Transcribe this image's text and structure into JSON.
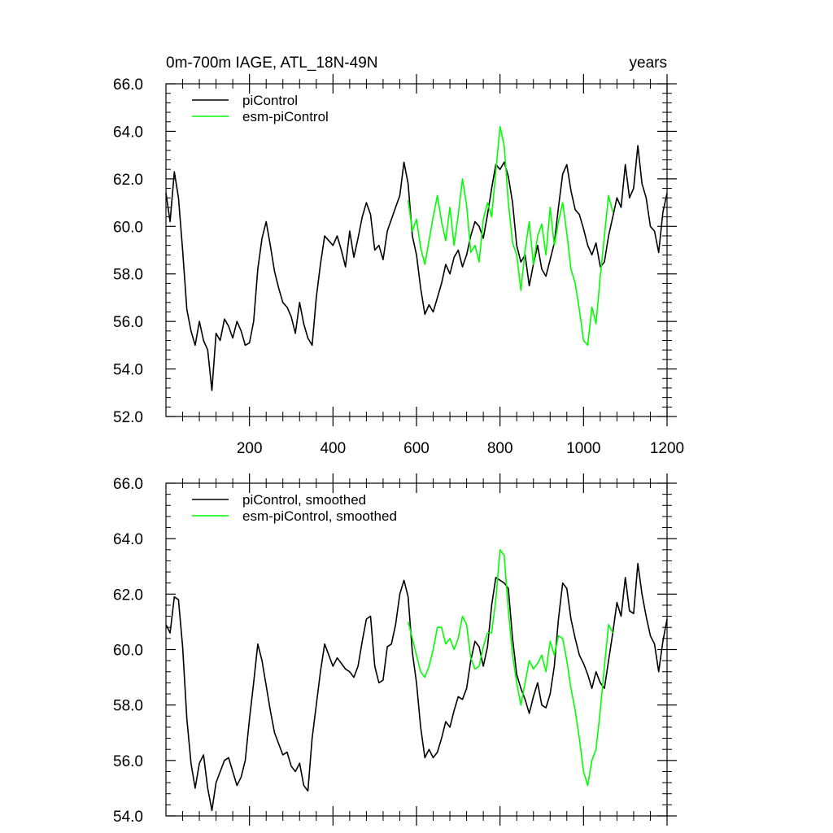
{
  "chart_data": [
    {
      "type": "line",
      "title": "0m-700m IAGE, ATL_18N-49N",
      "title_right": "years",
      "xlim": [
        0,
        1200
      ],
      "ylim": [
        52.0,
        66.0
      ],
      "xticks": [
        200,
        400,
        600,
        800,
        1000,
        1200
      ],
      "xtick_labels": [
        "200",
        "400",
        "600",
        "800",
        "1000",
        "1200"
      ],
      "yticks": [
        52.0,
        54.0,
        56.0,
        58.0,
        60.0,
        62.0,
        64.0,
        66.0
      ],
      "ytick_labels": [
        "52.0",
        "54.0",
        "56.0",
        "58.0",
        "60.0",
        "62.0",
        "64.0",
        "66.0"
      ],
      "legend_position": "top-left",
      "grid": false,
      "series": [
        {
          "name": "piControl",
          "color": "#000000",
          "x": [
            0,
            10,
            20,
            30,
            40,
            50,
            60,
            70,
            80,
            90,
            100,
            110,
            120,
            130,
            140,
            150,
            160,
            170,
            180,
            190,
            200,
            210,
            220,
            230,
            240,
            250,
            260,
            270,
            280,
            290,
            300,
            310,
            320,
            330,
            340,
            350,
            360,
            370,
            380,
            390,
            400,
            410,
            420,
            430,
            440,
            450,
            460,
            470,
            480,
            490,
            500,
            510,
            520,
            530,
            540,
            550,
            560,
            570,
            580,
            590,
            600,
            610,
            620,
            630,
            640,
            650,
            660,
            670,
            680,
            690,
            700,
            710,
            720,
            730,
            740,
            750,
            760,
            770,
            780,
            790,
            800,
            810,
            820,
            830,
            840,
            850,
            860,
            870,
            880,
            890,
            900,
            910,
            920,
            930,
            940,
            950,
            960,
            970,
            980,
            990,
            1000,
            1010,
            1020,
            1030,
            1040,
            1050,
            1060,
            1070,
            1080,
            1090,
            1100,
            1110,
            1120,
            1130,
            1140,
            1150,
            1160,
            1170,
            1180,
            1190,
            1200
          ],
          "y": [
            61.4,
            60.2,
            62.3,
            61.2,
            59.0,
            56.5,
            55.6,
            55.0,
            56.0,
            55.2,
            54.8,
            53.1,
            55.5,
            55.2,
            56.1,
            55.8,
            55.3,
            56.0,
            55.6,
            55.0,
            55.1,
            56.0,
            58.2,
            59.5,
            60.2,
            59.2,
            58.1,
            57.4,
            56.8,
            56.6,
            56.2,
            55.5,
            56.8,
            55.9,
            55.3,
            55.0,
            57.0,
            58.4,
            59.6,
            59.4,
            59.2,
            59.6,
            59.0,
            58.3,
            59.8,
            58.7,
            59.5,
            60.4,
            61.0,
            60.5,
            59.0,
            59.2,
            58.6,
            59.8,
            60.3,
            60.8,
            61.3,
            62.7,
            61.8,
            59.6,
            58.8,
            57.4,
            56.3,
            56.7,
            56.4,
            57.0,
            57.6,
            58.4,
            58.0,
            58.7,
            59.0,
            58.3,
            58.8,
            59.6,
            60.2,
            60.0,
            59.5,
            60.5,
            61.6,
            62.6,
            62.4,
            62.7,
            62.1,
            61.0,
            59.2,
            58.5,
            58.8,
            57.5,
            58.4,
            59.2,
            58.2,
            57.9,
            58.6,
            59.3,
            60.8,
            62.2,
            62.6,
            61.5,
            60.7,
            60.5,
            59.9,
            59.2,
            58.8,
            59.3,
            58.3,
            58.5,
            59.6,
            60.4,
            61.2,
            60.8,
            62.6,
            61.2,
            61.6,
            63.4,
            61.8,
            61.2,
            60.0,
            59.8,
            58.9,
            60.6,
            61.4
          ]
        },
        {
          "name": "esm-piControl",
          "color": "#00ff00",
          "x": [
            580,
            590,
            600,
            610,
            620,
            630,
            640,
            650,
            660,
            670,
            680,
            690,
            700,
            710,
            720,
            730,
            740,
            750,
            760,
            770,
            780,
            790,
            800,
            810,
            820,
            830,
            840,
            850,
            860,
            870,
            880,
            890,
            900,
            910,
            920,
            930,
            940,
            950,
            960,
            970,
            980,
            990,
            1000,
            1010,
            1020,
            1030,
            1040,
            1050,
            1060,
            1070
          ],
          "y": [
            61.1,
            59.8,
            60.3,
            59.1,
            58.4,
            59.4,
            60.4,
            61.3,
            60.2,
            59.4,
            60.8,
            59.2,
            60.5,
            62.0,
            60.9,
            58.9,
            59.2,
            58.5,
            60.3,
            61.0,
            60.4,
            62.3,
            64.2,
            63.4,
            61.0,
            59.3,
            58.8,
            57.3,
            59.0,
            60.2,
            58.4,
            59.6,
            60.1,
            58.8,
            60.8,
            59.2,
            60.2,
            61.0,
            59.7,
            58.2,
            57.6,
            56.5,
            55.2,
            55.0,
            56.6,
            55.9,
            57.9,
            59.6,
            61.3,
            60.6
          ]
        }
      ]
    },
    {
      "type": "line",
      "xlim": [
        0,
        1200
      ],
      "ylim": [
        54.0,
        66.0
      ],
      "xticks": [
        200,
        400,
        600,
        800,
        1000,
        1200
      ],
      "yticks": [
        54.0,
        56.0,
        58.0,
        60.0,
        62.0,
        64.0,
        66.0
      ],
      "ytick_labels": [
        "54.0",
        "56.0",
        "58.0",
        "60.0",
        "62.0",
        "64.0",
        "66.0"
      ],
      "legend_position": "top-left",
      "grid": false,
      "series": [
        {
          "name": "piControl, smoothed",
          "color": "#000000",
          "x": [
            0,
            10,
            20,
            30,
            40,
            50,
            60,
            70,
            80,
            90,
            100,
            110,
            120,
            130,
            140,
            150,
            160,
            170,
            180,
            190,
            200,
            210,
            220,
            230,
            240,
            250,
            260,
            270,
            280,
            290,
            300,
            310,
            320,
            330,
            340,
            350,
            360,
            370,
            380,
            390,
            400,
            410,
            420,
            430,
            440,
            450,
            460,
            470,
            480,
            490,
            500,
            510,
            520,
            530,
            540,
            550,
            560,
            570,
            580,
            590,
            600,
            610,
            620,
            630,
            640,
            650,
            660,
            670,
            680,
            690,
            700,
            710,
            720,
            730,
            740,
            750,
            760,
            770,
            780,
            790,
            800,
            810,
            820,
            830,
            840,
            850,
            860,
            870,
            880,
            890,
            900,
            910,
            920,
            930,
            940,
            950,
            960,
            970,
            980,
            990,
            1000,
            1010,
            1020,
            1030,
            1040,
            1050,
            1060,
            1070,
            1080,
            1090,
            1100,
            1110,
            1120,
            1130,
            1140,
            1150,
            1160,
            1170,
            1180,
            1190,
            1200
          ],
          "y": [
            60.9,
            60.6,
            61.9,
            61.8,
            60.1,
            57.5,
            55.9,
            55.0,
            55.9,
            56.2,
            55.0,
            54.2,
            55.2,
            55.6,
            56.0,
            56.1,
            55.6,
            55.1,
            55.4,
            56.0,
            57.5,
            58.8,
            60.2,
            59.6,
            58.7,
            57.8,
            57.0,
            56.6,
            56.2,
            56.3,
            55.8,
            55.6,
            55.9,
            55.1,
            54.9,
            56.8,
            58.0,
            59.2,
            60.2,
            59.8,
            59.4,
            59.7,
            59.5,
            59.3,
            59.2,
            59.0,
            59.4,
            60.3,
            61.1,
            61.2,
            59.4,
            58.8,
            58.9,
            60.1,
            60.2,
            60.9,
            62.0,
            62.5,
            61.9,
            59.9,
            58.8,
            57.2,
            56.1,
            56.4,
            56.1,
            56.3,
            56.8,
            57.4,
            57.2,
            57.8,
            58.3,
            58.2,
            58.6,
            59.6,
            60.3,
            60.1,
            59.4,
            60.1,
            61.6,
            62.6,
            62.5,
            62.4,
            62.2,
            60.4,
            59.1,
            58.6,
            58.2,
            57.7,
            58.3,
            58.8,
            58.0,
            57.9,
            58.4,
            59.4,
            61.1,
            62.4,
            62.2,
            61.1,
            60.4,
            59.8,
            59.5,
            59.1,
            58.6,
            59.2,
            58.8,
            58.6,
            59.6,
            60.6,
            61.7,
            61.2,
            62.6,
            61.4,
            61.3,
            63.1,
            62.0,
            61.2,
            60.5,
            60.2,
            59.2,
            60.3,
            61.1
          ]
        },
        {
          "name": "esm-piControl, smoothed",
          "color": "#00ff00",
          "x": [
            580,
            590,
            600,
            610,
            620,
            630,
            640,
            650,
            660,
            670,
            680,
            690,
            700,
            710,
            720,
            730,
            740,
            750,
            760,
            770,
            780,
            790,
            800,
            810,
            820,
            830,
            840,
            850,
            860,
            870,
            880,
            890,
            900,
            910,
            920,
            930,
            940,
            950,
            960,
            970,
            980,
            990,
            1000,
            1010,
            1020,
            1030,
            1040,
            1050,
            1060,
            1070
          ],
          "y": [
            61.0,
            60.4,
            59.8,
            59.2,
            59.0,
            59.4,
            60.0,
            60.8,
            60.8,
            60.2,
            60.4,
            60.0,
            60.4,
            61.2,
            60.9,
            59.7,
            59.3,
            59.4,
            60.1,
            60.6,
            60.6,
            61.8,
            63.6,
            63.4,
            61.4,
            59.8,
            58.8,
            58.0,
            58.8,
            59.6,
            59.3,
            59.5,
            59.8,
            59.2,
            60.3,
            59.8,
            60.5,
            60.4,
            59.6,
            58.6,
            57.8,
            56.8,
            55.6,
            55.1,
            56.0,
            56.4,
            57.8,
            59.4,
            60.9,
            60.6
          ]
        }
      ]
    }
  ]
}
